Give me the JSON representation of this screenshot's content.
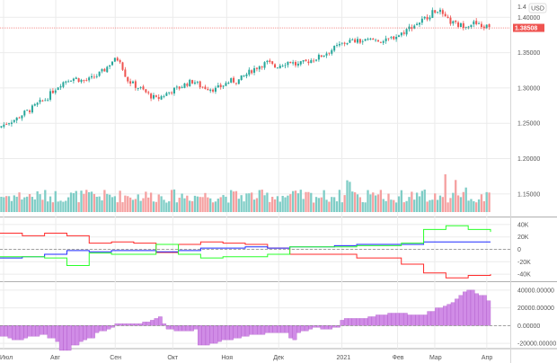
{
  "chart_data": [
    {
      "panel": "price",
      "type": "candlestick",
      "currency_label": "USD",
      "price_axis_ticks": [
        "1.40000",
        "1.35000",
        "1.30000",
        "1.25000",
        "1.20000",
        "1.15000"
      ],
      "price_axis_top_tick": "1.4",
      "price_axis_values": [
        1.4,
        1.35,
        1.3,
        1.25,
        1.2,
        1.15
      ],
      "ylim": [
        1.132,
        1.422
      ],
      "current_price_label": "1.38508",
      "current_price": 1.38508,
      "x_labels": [
        "Июл",
        "Авг",
        "Сен",
        "Окт",
        "Ноя",
        "Дек",
        "2021",
        "Фев",
        "Мар",
        "Апр"
      ],
      "close_path": [
        [
          0,
          1.246
        ],
        [
          4,
          1.252
        ],
        [
          8,
          1.256
        ],
        [
          12,
          1.264
        ],
        [
          16,
          1.27
        ],
        [
          20,
          1.278
        ],
        [
          24,
          1.284
        ],
        [
          28,
          1.296
        ],
        [
          32,
          1.306
        ],
        [
          36,
          1.312
        ],
        [
          40,
          1.314
        ],
        [
          44,
          1.31
        ],
        [
          48,
          1.312
        ],
        [
          52,
          1.318
        ],
        [
          56,
          1.326
        ],
        [
          60,
          1.338
        ],
        [
          64,
          1.342
        ],
        [
          66,
          1.326
        ],
        [
          68,
          1.312
        ],
        [
          72,
          1.304
        ],
        [
          76,
          1.298
        ],
        [
          80,
          1.29
        ],
        [
          84,
          1.284
        ],
        [
          88,
          1.29
        ],
        [
          92,
          1.296
        ],
        [
          96,
          1.3
        ],
        [
          100,
          1.306
        ],
        [
          104,
          1.31
        ],
        [
          108,
          1.302
        ],
        [
          112,
          1.3
        ],
        [
          116,
          1.298
        ],
        [
          120,
          1.304
        ],
        [
          124,
          1.31
        ],
        [
          128,
          1.31
        ],
        [
          132,
          1.318
        ],
        [
          136,
          1.326
        ],
        [
          140,
          1.332
        ],
        [
          144,
          1.336
        ],
        [
          148,
          1.33
        ],
        [
          152,
          1.334
        ],
        [
          156,
          1.338
        ],
        [
          160,
          1.332
        ],
        [
          164,
          1.336
        ],
        [
          168,
          1.34
        ],
        [
          172,
          1.344
        ],
        [
          176,
          1.35
        ],
        [
          180,
          1.356
        ],
        [
          184,
          1.362
        ],
        [
          188,
          1.366
        ],
        [
          192,
          1.366
        ],
        [
          196,
          1.366
        ],
        [
          200,
          1.368
        ],
        [
          204,
          1.368
        ],
        [
          208,
          1.366
        ],
        [
          212,
          1.372
        ],
        [
          216,
          1.376
        ],
        [
          220,
          1.384
        ],
        [
          224,
          1.39
        ],
        [
          228,
          1.396
        ],
        [
          232,
          1.404
        ],
        [
          236,
          1.412
        ],
        [
          240,
          1.398
        ],
        [
          244,
          1.392
        ],
        [
          248,
          1.388
        ],
        [
          252,
          1.39
        ],
        [
          256,
          1.392
        ],
        [
          260,
          1.386
        ],
        [
          264,
          1.388
        ]
      ],
      "volume_range": [
        0.2,
        1.0
      ]
    },
    {
      "panel": "indicator-1",
      "type": "line",
      "axis_ticks": [
        "40K",
        "20K",
        "0",
        "-20K",
        "-40K"
      ],
      "axis_values": [
        40000,
        20000,
        0,
        -20000,
        -40000
      ],
      "ylim": [
        -50000,
        50000
      ],
      "series": [
        {
          "color": "#ff2a2a",
          "values": [
            [
              0,
              26000
            ],
            [
              12,
              22000
            ],
            [
              24,
              26000
            ],
            [
              36,
              22000
            ],
            [
              48,
              10000
            ],
            [
              60,
              12000
            ],
            [
              72,
              10000
            ],
            [
              84,
              -5000
            ],
            [
              96,
              8000
            ],
            [
              108,
              12000
            ],
            [
              120,
              10000
            ],
            [
              132,
              8000
            ],
            [
              144,
              2000
            ],
            [
              156,
              -8000
            ],
            [
              168,
              -8000
            ],
            [
              180,
              -8000
            ],
            [
              192,
              -14000
            ],
            [
              204,
              -14000
            ],
            [
              216,
              -24000
            ],
            [
              228,
              -38000
            ],
            [
              240,
              -46000
            ],
            [
              252,
              -42000
            ],
            [
              264,
              -40000
            ]
          ]
        },
        {
          "color": "#1f2bff",
          "values": [
            [
              0,
              -14000
            ],
            [
              12,
              -12000
            ],
            [
              24,
              -8000
            ],
            [
              36,
              -2000
            ],
            [
              48,
              -4000
            ],
            [
              60,
              -2000
            ],
            [
              72,
              -2000
            ],
            [
              84,
              -4000
            ],
            [
              96,
              -2000
            ],
            [
              108,
              2000
            ],
            [
              120,
              2000
            ],
            [
              132,
              4000
            ],
            [
              144,
              2000
            ],
            [
              156,
              4000
            ],
            [
              168,
              4000
            ],
            [
              180,
              6000
            ],
            [
              192,
              8000
            ],
            [
              204,
              8000
            ],
            [
              216,
              8000
            ],
            [
              228,
              12000
            ],
            [
              240,
              12000
            ],
            [
              252,
              12000
            ],
            [
              264,
              12000
            ]
          ]
        },
        {
          "color": "#2aff2a",
          "values": [
            [
              0,
              -12000
            ],
            [
              12,
              -12000
            ],
            [
              24,
              -14000
            ],
            [
              36,
              -26000
            ],
            [
              48,
              -6000
            ],
            [
              60,
              -8000
            ],
            [
              72,
              -8000
            ],
            [
              84,
              8000
            ],
            [
              96,
              -8000
            ],
            [
              108,
              -14000
            ],
            [
              120,
              -12000
            ],
            [
              132,
              -12000
            ],
            [
              144,
              -8000
            ],
            [
              156,
              4000
            ],
            [
              168,
              4000
            ],
            [
              180,
              4000
            ],
            [
              192,
              6000
            ],
            [
              204,
              6000
            ],
            [
              216,
              10000
            ],
            [
              228,
              32000
            ],
            [
              240,
              38000
            ],
            [
              252,
              32000
            ],
            [
              264,
              28000
            ]
          ]
        }
      ]
    },
    {
      "panel": "indicator-2",
      "type": "bar",
      "axis_ticks": [
        "40000.00000",
        "20000.00000",
        "0.00000",
        "-20000.00000"
      ],
      "axis_values": [
        40000,
        20000,
        0,
        -20000
      ],
      "ylim": [
        -26000,
        48000
      ],
      "values": [
        -12000,
        -12000,
        -14000,
        -16000,
        -16000,
        -16000,
        -14000,
        -12000,
        -12000,
        -12000,
        -10000,
        -10000,
        -14000,
        -14000,
        -18000,
        -28000,
        -28000,
        -28000,
        -22000,
        -22000,
        -18000,
        -16000,
        -14000,
        -14000,
        -8000,
        -6000,
        -6000,
        -4000,
        -2000,
        2000,
        2000,
        2000,
        2000,
        2000,
        2000,
        2000,
        4000,
        4000,
        6000,
        8000,
        10000,
        2000,
        -4000,
        -4000,
        -6000,
        -6000,
        -6000,
        -6000,
        -6000,
        -4000,
        -22000,
        -22000,
        -22000,
        -20000,
        -20000,
        -18000,
        -16000,
        -16000,
        -16000,
        -14000,
        -14000,
        -12000,
        -12000,
        -10000,
        -10000,
        -10000,
        -10000,
        -8000,
        -8000,
        -8000,
        -8000,
        -8000,
        -8000,
        -14000,
        -16000,
        -8000,
        -6000,
        -6000,
        -4000,
        -2000,
        -2000,
        -4000,
        -4000,
        -4000,
        -2000,
        -2000,
        6000,
        8000,
        8000,
        8000,
        8000,
        8000,
        8000,
        10000,
        10000,
        12000,
        12000,
        12000,
        14000,
        14000,
        14000,
        14000,
        14000,
        12000,
        12000,
        12000,
        12000,
        12000,
        16000,
        16000,
        20000,
        20000,
        22000,
        24000,
        26000,
        30000,
        34000,
        38000,
        40000,
        40000,
        36000,
        34000,
        34000,
        28000
      ]
    }
  ],
  "colors": {
    "up": "#26a69a",
    "down": "#ef5350",
    "vol_up": "#7fcdc6",
    "vol_down": "#f5a0a0",
    "price_line": "#ef5350",
    "price_tag_bg": "#ef5350",
    "histogram": "#d08ce6",
    "histogram_border": "#a74bc4",
    "grid": "#ebebeb",
    "separator": "#b0b0b0",
    "zero_line": "#888888",
    "axis_text": "#555555"
  }
}
